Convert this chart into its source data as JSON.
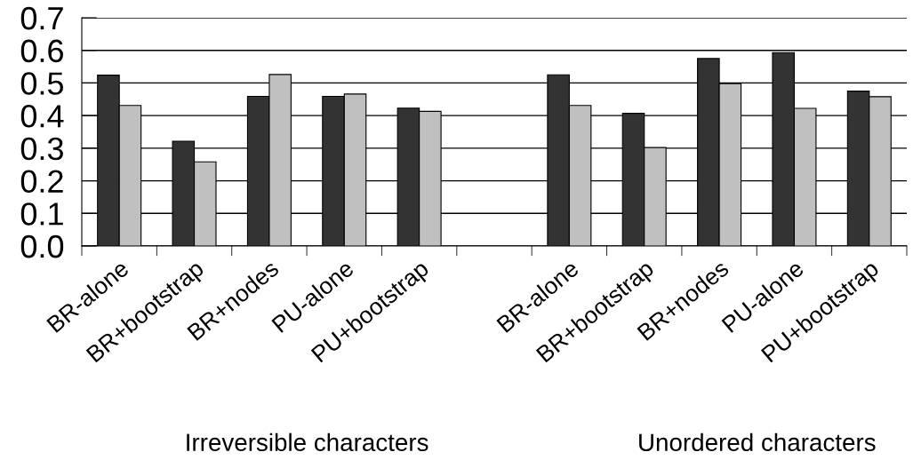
{
  "chart_data": {
    "type": "bar",
    "categories": [
      "BR-alone",
      "BR+bootstrap",
      "BR+nodes",
      "PU-alone",
      "PU+bootstrap",
      null,
      "BR-alone",
      "BR+bootstrap",
      "BR+nodes",
      "PU-alone",
      "PU+bootstrap"
    ],
    "series": [
      {
        "color": "#333333",
        "values": [
          0.524,
          0.321,
          0.459,
          0.459,
          0.423,
          null,
          0.525,
          0.407,
          0.575,
          0.593,
          0.475
        ]
      },
      {
        "color": "#c0c0c0",
        "values": [
          0.431,
          0.258,
          0.526,
          0.466,
          0.413,
          null,
          0.431,
          0.302,
          0.498,
          0.422,
          0.458
        ]
      }
    ],
    "ylim": [
      0,
      0.7
    ],
    "yticks": [
      {
        "value": 0,
        "label": "0.0"
      },
      0.1,
      0.2,
      0.3,
      0.4,
      0.5,
      0.6,
      0.7
    ],
    "grid": "y",
    "legend": false,
    "annotations": [
      "Irreversible characters",
      "Unordered characters"
    ]
  }
}
